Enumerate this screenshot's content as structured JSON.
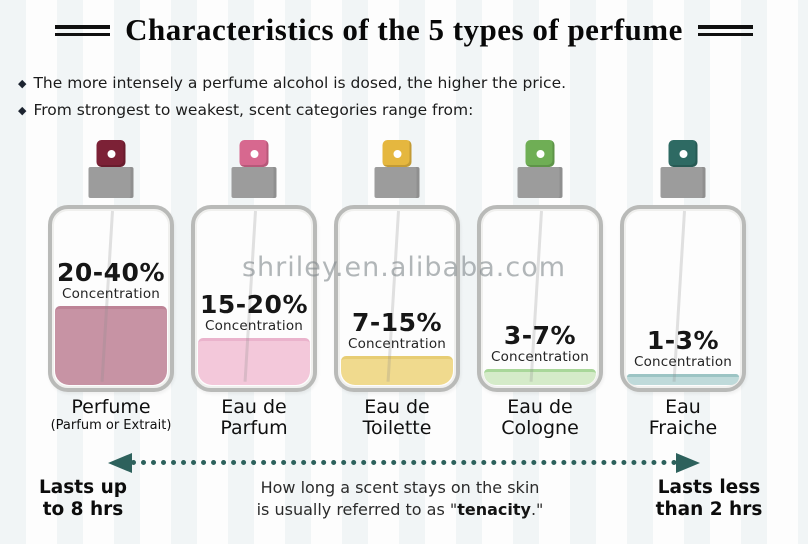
{
  "title": "Characteristics of the 5 types of perfume",
  "bullets": {
    "marker": "◆",
    "items": [
      "The more intensely a perfume alcohol is dosed, the higher the price.",
      "From strongest to weakest, scent categories range from:"
    ]
  },
  "watermark": "shriley.en.alibaba.com",
  "bottles": [
    {
      "range": "20-40%",
      "concentration_word": "Concentration",
      "name_line1": "Perfume",
      "name_line2": "(Parfum or Extrait)",
      "cap_color": "#7c2136",
      "liquid_color": "#c793a4",
      "liquid_top_color": "#bd8396",
      "fill_percent": 44
    },
    {
      "range": "15-20%",
      "concentration_word": "Concentration",
      "name_line1": "Eau de",
      "name_line2": "Parfum",
      "cap_color": "#d7688f",
      "liquid_color": "#f3c8da",
      "liquid_top_color": "#eab3cc",
      "fill_percent": 26
    },
    {
      "range": "7-15%",
      "concentration_word": "Concentration",
      "name_line1": "Eau de",
      "name_line2": "Toilette",
      "cap_color": "#e5b73f",
      "liquid_color": "#f0da8e",
      "liquid_top_color": "#e7cd74",
      "fill_percent": 16
    },
    {
      "range": "3-7%",
      "concentration_word": "Concentration",
      "name_line1": "Eau de",
      "name_line2": "Cologne",
      "cap_color": "#6fae55",
      "liquid_color": "#d5ebc9",
      "liquid_top_color": "#a9d79a",
      "fill_percent": 9
    },
    {
      "range": "1-3%",
      "concentration_word": "Concentration",
      "name_line1": "Eau",
      "name_line2": "Fraiche",
      "cap_color": "#2e6a63",
      "liquid_color": "#bfdada",
      "liquid_top_color": "#9cc4c4",
      "fill_percent": 6
    }
  ],
  "timeline": {
    "arrow_color": "#2d615c",
    "left_line1": "Lasts up",
    "left_line2": "to 8 hrs",
    "center_line1": "How long a scent stays on the skin",
    "center_line2_prefix": "is usually referred to as \"",
    "center_line2_bold": "tenacity",
    "center_line2_suffix": ".\"",
    "right_line1": "Lasts less",
    "right_line2": "than 2 hrs"
  }
}
